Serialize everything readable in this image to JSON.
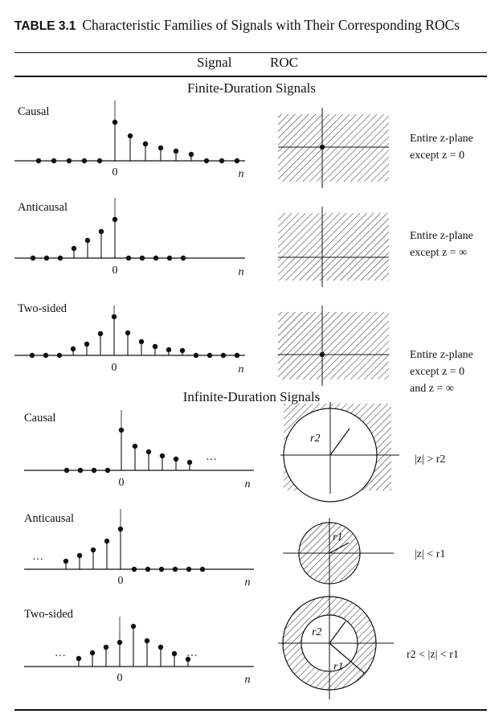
{
  "table": {
    "number": "TABLE 3.1",
    "title": "Characteristic Families of Signals with Their Corresponding ROCs",
    "col_signal": "Signal",
    "col_roc": "ROC"
  },
  "sections": {
    "finite": "Finite-Duration Signals",
    "infinite": "Infinite-Duration Signals"
  },
  "rows": [
    {
      "label": "Causal",
      "roc_lines": [
        "Entire z-plane",
        "except z = 0"
      ]
    },
    {
      "label": "Anticausal",
      "roc_lines": [
        "Entire z-plane",
        "except z = ∞"
      ]
    },
    {
      "label": "Two-sided",
      "roc_lines": [
        "Entire z-plane",
        "except z = 0",
        "and z = ∞"
      ]
    },
    {
      "label": "Causal",
      "roc_lines": [
        "|z| > r2"
      ]
    },
    {
      "label": "Anticausal",
      "roc_lines": [
        "|z| < r1"
      ]
    },
    {
      "label": "Two-sided",
      "roc_lines": [
        "r2 < |z| < r1"
      ]
    }
  ],
  "axis": {
    "zero": "0",
    "n": "n",
    "ellipsis": "···"
  },
  "radii": {
    "r1": "r1",
    "r2": "r2"
  }
}
